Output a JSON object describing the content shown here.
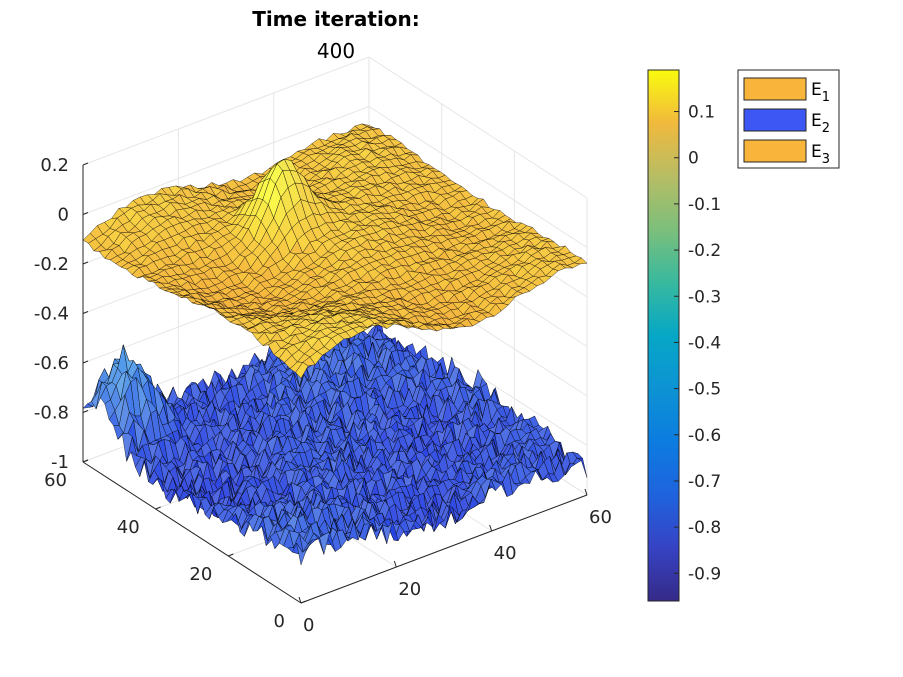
{
  "chart_data": {
    "type": "surface3d",
    "title": "Time iteration:",
    "subtitle": "400",
    "x": {
      "range": [
        0,
        60
      ],
      "ticks": [
        0,
        20,
        40,
        60
      ]
    },
    "y": {
      "range": [
        0,
        60
      ],
      "ticks": [
        0,
        20,
        40,
        60
      ]
    },
    "z": {
      "range": [
        -1,
        0.2
      ],
      "ticks": [
        -1,
        -0.8,
        -0.6,
        -0.4,
        -0.2,
        0,
        0.2
      ],
      "tick_labels": [
        "-1",
        "-0.8",
        "-0.6",
        "-0.4",
        "-0.2",
        "0",
        "0.2"
      ]
    },
    "grid": true,
    "colorbar": {
      "range": [
        -0.96,
        0.19
      ],
      "colormap": "parula",
      "ticks": [
        0.1,
        0,
        -0.1,
        -0.2,
        -0.3,
        -0.4,
        -0.5,
        -0.6,
        -0.7,
        -0.8,
        -0.9
      ],
      "tick_labels": [
        "0.1",
        "0",
        "-0.1",
        "-0.2",
        "-0.3",
        "-0.4",
        "-0.5",
        "-0.6",
        "-0.7",
        "-0.8",
        "-0.9"
      ]
    },
    "legend": {
      "placement": "top-right",
      "entries": [
        {
          "name": "E",
          "sub": "1",
          "color": "#f9b43b"
        },
        {
          "name": "E",
          "sub": "2",
          "color": "#3d57f5"
        },
        {
          "name": "E",
          "sub": "3",
          "color": "#f9b43b"
        }
      ]
    },
    "series": [
      {
        "name": "E1",
        "base_level": -0.08,
        "amplitude": 0.09,
        "roughness": 0.2,
        "peak": {
          "x": 28,
          "y": 42,
          "z": 0.18
        }
      },
      {
        "name": "E2",
        "base_level": -0.86,
        "amplitude": 0.08,
        "roughness": 0.8,
        "peak": {
          "x": 5,
          "y": 55,
          "z": -0.58
        }
      }
    ]
  }
}
